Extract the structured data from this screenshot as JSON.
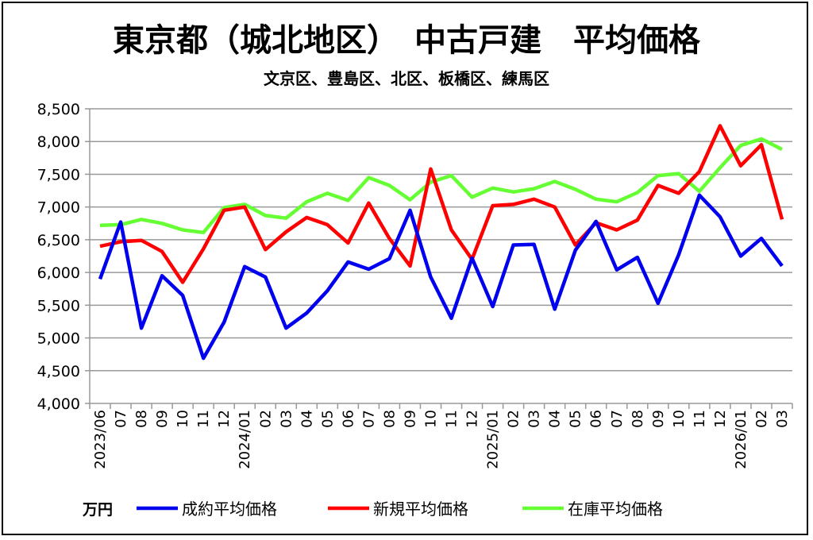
{
  "chart_data": {
    "type": "line",
    "title": "東京都（城北地区）　中古戸建　平均価格",
    "subtitle": "文京区、豊島区、北区、板橋区、練馬区",
    "ylabel": "万円",
    "xlabel": "",
    "ylim": [
      4000,
      8500
    ],
    "yticks": [
      "4,000",
      "4,500",
      "5,000",
      "5,500",
      "6,000",
      "6,500",
      "7,000",
      "7,500",
      "8,000",
      "8,500"
    ],
    "ytick_values": [
      4000,
      4500,
      5000,
      5500,
      6000,
      6500,
      7000,
      7500,
      8000,
      8500
    ],
    "grid": true,
    "legend_position": "bottom",
    "categories": [
      "2023/06",
      "07",
      "08",
      "09",
      "10",
      "11",
      "12",
      "2024/01",
      "02",
      "03",
      "04",
      "05",
      "06",
      "07",
      "08",
      "09",
      "10",
      "11",
      "12",
      "2025/01",
      "02",
      "03",
      "04",
      "05",
      "06",
      "07",
      "08",
      "09",
      "10",
      "11",
      "12",
      "2026/01",
      "02",
      "03"
    ],
    "series": [
      {
        "name": "成約平均価格",
        "color": "#0000ee",
        "values": [
          5900,
          6770,
          5150,
          5950,
          5650,
          4690,
          5240,
          6090,
          5930,
          5150,
          5380,
          5720,
          6160,
          6050,
          6210,
          6950,
          5930,
          5300,
          6220,
          5480,
          6420,
          6430,
          5440,
          6340,
          6780,
          6040,
          6230,
          5530,
          6270,
          7180,
          6850,
          6250,
          6520,
          6100
        ]
      },
      {
        "name": "新規平均価格",
        "color": "#ff0000",
        "values": [
          6400,
          6470,
          6490,
          6320,
          5850,
          6360,
          6950,
          7000,
          6350,
          6620,
          6840,
          6730,
          6450,
          7060,
          6520,
          6100,
          7580,
          6650,
          6200,
          7020,
          7040,
          7120,
          7000,
          6420,
          6760,
          6650,
          6800,
          7330,
          7210,
          7540,
          8240,
          7630,
          7950,
          6810
        ]
      },
      {
        "name": "在庫平均価格",
        "color": "#66ff33",
        "values": [
          6720,
          6730,
          6810,
          6750,
          6650,
          6610,
          6990,
          7040,
          6870,
          6830,
          7080,
          7210,
          7100,
          7450,
          7330,
          7110,
          7380,
          7480,
          7150,
          7290,
          7230,
          7280,
          7390,
          7270,
          7120,
          7080,
          7220,
          7480,
          7510,
          7240,
          7600,
          7940,
          8040,
          7880
        ]
      }
    ]
  }
}
